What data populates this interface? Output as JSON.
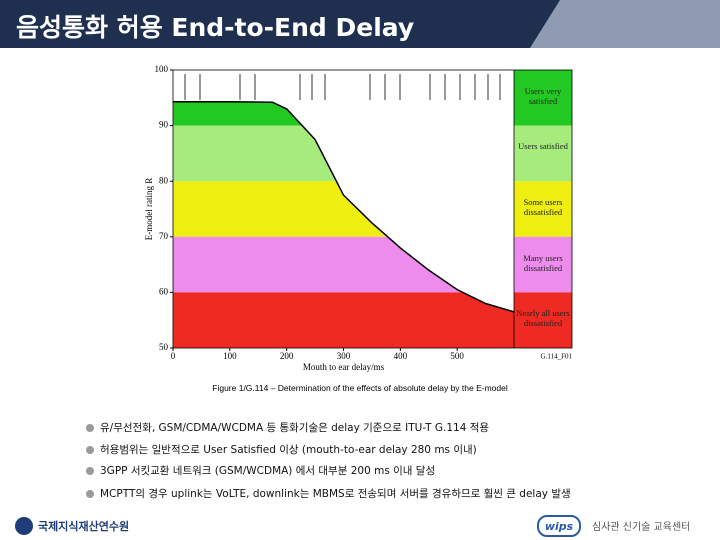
{
  "slide": {
    "title": "음성통화 허용 End-to-End Delay"
  },
  "chart_data": {
    "type": "line",
    "y_label": "E-model rating R",
    "x_label": "Mouth to ear delay/ms",
    "figure_id": "G.114_F01",
    "x": [
      0,
      100,
      175,
      200,
      250,
      300,
      350,
      400,
      450,
      500,
      550,
      600
    ],
    "values": [
      94.3,
      94.3,
      94.2,
      93,
      87.5,
      77.5,
      72.5,
      68,
      64,
      60.5,
      58,
      56.5
    ],
    "color": "#000000",
    "xlim": [
      0,
      600
    ],
    "xticks": [
      0,
      100,
      200,
      300,
      400,
      500
    ],
    "ylim": [
      50,
      100
    ],
    "yticks": [
      50,
      60,
      70,
      80,
      90,
      100
    ],
    "bands": [
      {
        "label": "Users very satisfied",
        "from": 90,
        "to": 100,
        "color": "#22c922"
      },
      {
        "label": "Users satisfied",
        "from": 80,
        "to": 90,
        "color": "#a6ec7c"
      },
      {
        "label": "Some users dissatisfied",
        "from": 70,
        "to": 80,
        "color": "#eeee11"
      },
      {
        "label": "Many users dissatisfied",
        "from": 60,
        "to": 70,
        "color": "#ee8cee"
      },
      {
        "label": "Nearly all users dissatisfied",
        "from": 50,
        "to": 60,
        "color": "#ee2a22"
      }
    ]
  },
  "caption": "Figure 1/G.114 – Determination of the effects of absolute delay by the E-model",
  "bullets": [
    "유/무선전화, GSM/CDMA/WCDMA 등 통화기술은 delay 기준으로 ITU-T G.114 적용",
    "허용범위는 일반적으로 User Satisfied 이상 (mouth-to-ear delay 280 ms 이내)",
    "3GPP 서킷교환 네트워크 (GSM/WCDMA) 에서 대부분 200 ms 이내 달성",
    "MCPTT의 경우 uplink는 VoLTE, downlink는 MBMS로 전송되며 서버를 경유하므로 훨씬 큰 delay 발생"
  ],
  "footer": {
    "left": "국제지식재산연수원",
    "logo": "wips",
    "right": "심사관 신기술 교육센터"
  }
}
